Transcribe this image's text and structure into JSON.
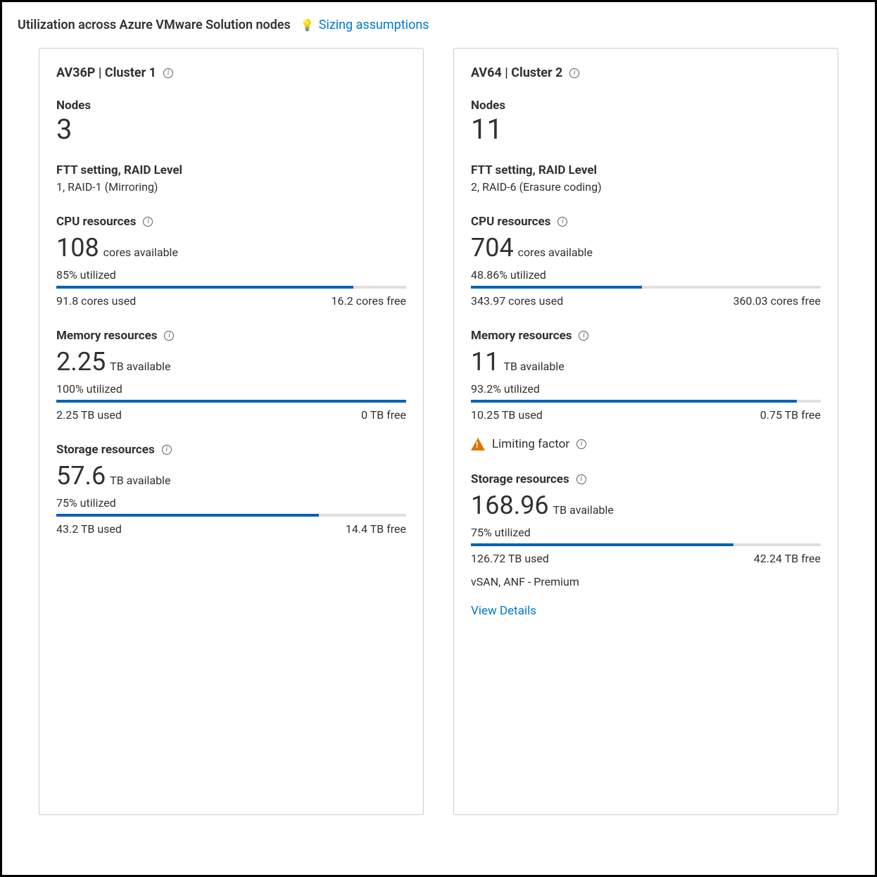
{
  "colors": {
    "link": "#0078d4",
    "bar_fill": "#0062b3",
    "bar_track": "#e1dfdd",
    "warn": "#d97500",
    "text": "#323130",
    "border": "#cccccc"
  },
  "header": {
    "title": "Utilization across Azure VMware Solution nodes",
    "sizing_link": "Sizing assumptions"
  },
  "clusters": [
    {
      "title": "AV36P | Cluster 1",
      "nodes_label": "Nodes",
      "nodes_value": "3",
      "ftt_label": "FTT setting, RAID Level",
      "ftt_value": "1, RAID-1 (Mirroring)",
      "cpu": {
        "title": "CPU resources",
        "available_value": "108",
        "available_unit": "cores available",
        "utilized_text": "85% utilized",
        "utilized_pct": 85,
        "used_text": "91.8 cores used",
        "free_text": "16.2 cores free"
      },
      "memory": {
        "title": "Memory resources",
        "available_value": "2.25",
        "available_unit": "TB available",
        "utilized_text": "100% utilized",
        "utilized_pct": 100,
        "used_text": "2.25 TB used",
        "free_text": "0 TB free"
      },
      "storage": {
        "title": "Storage resources",
        "available_value": "57.6",
        "available_unit": "TB available",
        "utilized_text": "75% utilized",
        "utilized_pct": 75,
        "used_text": "43.2 TB used",
        "free_text": "14.4 TB free"
      },
      "has_limiting": false,
      "storage_note": null,
      "view_details": null
    },
    {
      "title": "AV64 | Cluster 2",
      "nodes_label": "Nodes",
      "nodes_value": "11",
      "ftt_label": "FTT setting, RAID Level",
      "ftt_value": "2, RAID-6 (Erasure coding)",
      "cpu": {
        "title": "CPU resources",
        "available_value": "704",
        "available_unit": "cores available",
        "utilized_text": "48.86% utilized",
        "utilized_pct": 48.86,
        "used_text": "343.97 cores used",
        "free_text": "360.03 cores free"
      },
      "memory": {
        "title": "Memory resources",
        "available_value": "11",
        "available_unit": "TB available",
        "utilized_text": "93.2% utilized",
        "utilized_pct": 93.2,
        "used_text": "10.25 TB used",
        "free_text": "0.75 TB free"
      },
      "limiting_label": "Limiting factor",
      "storage": {
        "title": "Storage resources",
        "available_value": "168.96",
        "available_unit": "TB available",
        "utilized_text": "75% utilized",
        "utilized_pct": 75,
        "used_text": "126.72 TB used",
        "free_text": "42.24 TB free"
      },
      "has_limiting": true,
      "storage_note": "vSAN, ANF - Premium",
      "view_details": "View Details"
    }
  ]
}
